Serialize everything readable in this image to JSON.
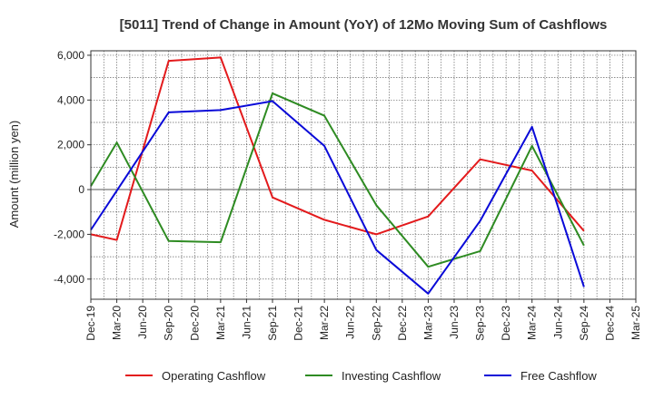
{
  "chart_data": {
    "type": "line",
    "title": "[5011]  Trend of Change in Amount (YoY) of 12Mo Moving Sum of Cashflows",
    "xlabel": "",
    "ylabel": "Amount (million yen)",
    "ylim": [
      -4900,
      6200
    ],
    "yticks": [
      -4000,
      -2000,
      0,
      2000,
      4000,
      6000
    ],
    "ytick_labels": [
      "-4,000",
      "-2,000",
      "0",
      "2,000",
      "4,000",
      "6,000"
    ],
    "categories": [
      "Dec-19",
      "Mar-20",
      "Jun-20",
      "Sep-20",
      "Dec-20",
      "Mar-21",
      "Jun-21",
      "Sep-21",
      "Dec-21",
      "Mar-22",
      "Jun-22",
      "Sep-22",
      "Dec-22",
      "Mar-23",
      "Jun-23",
      "Sep-23",
      "Dec-23",
      "Mar-24",
      "Jun-24",
      "Sep-24",
      "Dec-24",
      "Mar-25"
    ],
    "grid": true,
    "legend_position": "bottom",
    "series": [
      {
        "name": "Operating Cashflow",
        "color": "#e31a1c",
        "values": [
          -2000,
          -2250,
          null,
          5750,
          null,
          5900,
          null,
          -350,
          null,
          -1350,
          null,
          -2000,
          null,
          -1200,
          null,
          1350,
          null,
          850,
          null,
          -1850,
          null,
          null
        ]
      },
      {
        "name": "Investing Cashflow",
        "color": "#2e8b22",
        "values": [
          150,
          2100,
          null,
          -2300,
          null,
          -2350,
          null,
          4300,
          null,
          3300,
          null,
          -700,
          null,
          -3450,
          null,
          -2750,
          null,
          1950,
          null,
          -2500,
          null,
          null
        ]
      },
      {
        "name": "Free Cashflow",
        "color": "#0a0ad8",
        "values": [
          -1800,
          null,
          null,
          3450,
          null,
          3550,
          null,
          3950,
          null,
          1950,
          null,
          -2700,
          null,
          -4650,
          null,
          -1400,
          null,
          2800,
          null,
          -4350,
          null,
          null
        ]
      }
    ]
  }
}
